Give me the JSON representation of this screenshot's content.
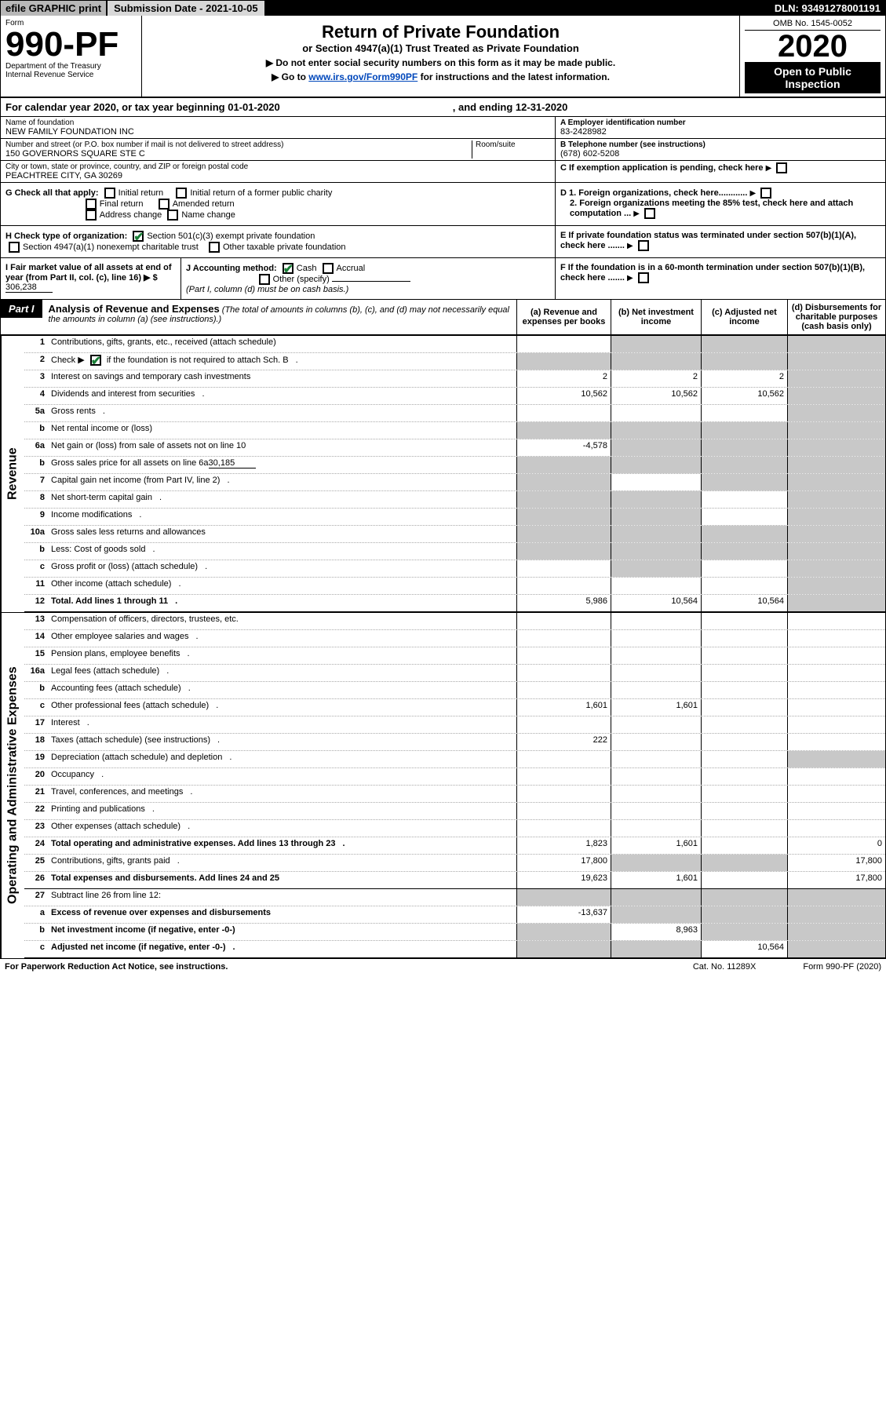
{
  "topbar": {
    "efile": "efile GRAPHIC print",
    "subdate_label": "Submission Date - 2021-10-05",
    "dln": "DLN: 93491278001191"
  },
  "head": {
    "form_label": "Form",
    "form_num": "990-PF",
    "dept": "Department of the Treasury",
    "irs": "Internal Revenue Service",
    "title": "Return of Private Foundation",
    "subtitle": "or Section 4947(a)(1) Trust Treated as Private Foundation",
    "note1": "▶ Do not enter social security numbers on this form as it may be made public.",
    "note2_pre": "▶ Go to ",
    "note2_link": "www.irs.gov/Form990PF",
    "note2_post": " for instructions and the latest information.",
    "omb": "OMB No. 1545-0052",
    "year": "2020",
    "open": "Open to Public Inspection"
  },
  "calrow": {
    "a": "For calendar year 2020, or tax year beginning 01-01-2020",
    "b": ", and ending 12-31-2020"
  },
  "name": {
    "lab": "Name of foundation",
    "val": "NEW FAMILY FOUNDATION INC"
  },
  "ein": {
    "lab": "A Employer identification number",
    "val": "83-2428982"
  },
  "addr": {
    "lab": "Number and street (or P.O. box number if mail is not delivered to street address)",
    "val": "150 GOVERNORS SQUARE STE C",
    "room": "Room/suite"
  },
  "tel": {
    "lab": "B Telephone number (see instructions)",
    "val": "(678) 602-5208"
  },
  "city": {
    "lab": "City or town, state or province, country, and ZIP or foreign postal code",
    "val": "PEACHTREE CITY, GA  30269"
  },
  "C": "C If exemption application is pending, check here",
  "G": {
    "lab": "G Check all that apply:",
    "o1": "Initial return",
    "o2": "Final return",
    "o3": "Address change",
    "o4": "Initial return of a former public charity",
    "o5": "Amended return",
    "o6": "Name change"
  },
  "D": {
    "d1": "D 1. Foreign organizations, check here............",
    "d2": "2. Foreign organizations meeting the 85% test, check here and attach computation ..."
  },
  "E": "E  If private foundation status was terminated under section 507(b)(1)(A), check here .......",
  "H": {
    "lab": "H Check type of organization:",
    "o1": "Section 501(c)(3) exempt private foundation",
    "o2": "Section 4947(a)(1) nonexempt charitable trust",
    "o3": "Other taxable private foundation"
  },
  "I": {
    "lab": "I Fair market value of all assets at end of year (from Part II, col. (c), line 16) ▶ $",
    "val": "306,238"
  },
  "J": {
    "lab": "J Accounting method:",
    "o1": "Cash",
    "o2": "Accrual",
    "o3": "Other (specify)",
    "note": "(Part I, column (d) must be on cash basis.)"
  },
  "F": "F  If the foundation is in a 60-month termination under section 507(b)(1)(B), check here .......",
  "part1": {
    "num": "Part I",
    "title": "Analysis of Revenue and Expenses",
    "note": "(The total of amounts in columns (b), (c), and (d) may not necessarily equal the amounts in column (a) (see instructions).)",
    "ha": "(a)  Revenue and expenses per books",
    "hb": "(b)  Net investment income",
    "hc": "(c)  Adjusted net income",
    "hd": "(d)  Disbursements for charitable purposes (cash basis only)"
  },
  "rotRev": "Revenue",
  "rotOps": "Operating and Administrative Expenses",
  "rows": [
    {
      "n": "1",
      "d": "Contributions, gifts, grants, etc., received (attach schedule)",
      "a": "",
      "b": "grey",
      "c": "grey",
      "dcol": "grey"
    },
    {
      "n": "2",
      "d": "Check ▶ ☑ if the foundation is not required to attach Sch. B",
      "dots": true,
      "a": "grey",
      "b": "grey",
      "c": "grey",
      "dcol": "grey",
      "ck": true
    },
    {
      "n": "3",
      "d": "Interest on savings and temporary cash investments",
      "a": "2",
      "b": "2",
      "c": "2",
      "dcol": "grey"
    },
    {
      "n": "4",
      "d": "Dividends and interest from securities",
      "dots": true,
      "a": "10,562",
      "b": "10,562",
      "c": "10,562",
      "dcol": "grey"
    },
    {
      "n": "5a",
      "d": "Gross rents",
      "dots": true,
      "a": "",
      "b": "",
      "c": "",
      "dcol": "grey"
    },
    {
      "n": "b",
      "d": "Net rental income or (loss)",
      "inline": true,
      "a": "grey",
      "b": "grey",
      "c": "grey",
      "dcol": "grey"
    },
    {
      "n": "6a",
      "d": "Net gain or (loss) from sale of assets not on line 10",
      "a": "-4,578",
      "b": "grey",
      "c": "grey",
      "dcol": "grey"
    },
    {
      "n": "b",
      "d": "Gross sales price for all assets on line 6a",
      "inlineVal": "30,185",
      "a": "grey",
      "b": "grey",
      "c": "grey",
      "dcol": "grey"
    },
    {
      "n": "7",
      "d": "Capital gain net income (from Part IV, line 2)",
      "dots": true,
      "a": "grey",
      "b": "",
      "c": "grey",
      "dcol": "grey"
    },
    {
      "n": "8",
      "d": "Net short-term capital gain",
      "dots": true,
      "a": "grey",
      "b": "grey",
      "c": "",
      "dcol": "grey"
    },
    {
      "n": "9",
      "d": "Income modifications",
      "dots": true,
      "a": "grey",
      "b": "grey",
      "c": "",
      "dcol": "grey"
    },
    {
      "n": "10a",
      "d": "Gross sales less returns and allowances",
      "inline": true,
      "a": "grey",
      "b": "grey",
      "c": "grey",
      "dcol": "grey"
    },
    {
      "n": "b",
      "d": "Less: Cost of goods sold",
      "dots": true,
      "inline": true,
      "a": "grey",
      "b": "grey",
      "c": "grey",
      "dcol": "grey"
    },
    {
      "n": "c",
      "d": "Gross profit or (loss) (attach schedule)",
      "dots": true,
      "a": "",
      "b": "grey",
      "c": "",
      "dcol": "grey"
    },
    {
      "n": "11",
      "d": "Other income (attach schedule)",
      "dots": true,
      "a": "",
      "b": "",
      "c": "",
      "dcol": "grey"
    },
    {
      "n": "12",
      "d": "Total. Add lines 1 through 11",
      "dots": true,
      "bold": true,
      "a": "5,986",
      "b": "10,564",
      "c": "10,564",
      "dcol": "grey",
      "solid": true
    }
  ],
  "rowsOps": [
    {
      "n": "13",
      "d": "Compensation of officers, directors, trustees, etc.",
      "a": "",
      "b": "",
      "c": "",
      "dcol": ""
    },
    {
      "n": "14",
      "d": "Other employee salaries and wages",
      "dots": true,
      "a": "",
      "b": "",
      "c": "",
      "dcol": ""
    },
    {
      "n": "15",
      "d": "Pension plans, employee benefits",
      "dots": true,
      "a": "",
      "b": "",
      "c": "",
      "dcol": ""
    },
    {
      "n": "16a",
      "d": "Legal fees (attach schedule)",
      "dots": true,
      "a": "",
      "b": "",
      "c": "",
      "dcol": ""
    },
    {
      "n": "b",
      "d": "Accounting fees (attach schedule)",
      "dots": true,
      "a": "",
      "b": "",
      "c": "",
      "dcol": ""
    },
    {
      "n": "c",
      "d": "Other professional fees (attach schedule)",
      "dots": true,
      "a": "1,601",
      "b": "1,601",
      "c": "",
      "dcol": ""
    },
    {
      "n": "17",
      "d": "Interest",
      "dots": true,
      "a": "",
      "b": "",
      "c": "",
      "dcol": ""
    },
    {
      "n": "18",
      "d": "Taxes (attach schedule) (see instructions)",
      "dots": true,
      "a": "222",
      "b": "",
      "c": "",
      "dcol": ""
    },
    {
      "n": "19",
      "d": "Depreciation (attach schedule) and depletion",
      "dots": true,
      "a": "",
      "b": "",
      "c": "",
      "dcol": "grey"
    },
    {
      "n": "20",
      "d": "Occupancy",
      "dots": true,
      "a": "",
      "b": "",
      "c": "",
      "dcol": ""
    },
    {
      "n": "21",
      "d": "Travel, conferences, and meetings",
      "dots": true,
      "a": "",
      "b": "",
      "c": "",
      "dcol": ""
    },
    {
      "n": "22",
      "d": "Printing and publications",
      "dots": true,
      "a": "",
      "b": "",
      "c": "",
      "dcol": ""
    },
    {
      "n": "23",
      "d": "Other expenses (attach schedule)",
      "dots": true,
      "a": "",
      "b": "",
      "c": "",
      "dcol": ""
    },
    {
      "n": "24",
      "d": "Total operating and administrative expenses. Add lines 13 through 23",
      "dots": true,
      "bold": true,
      "a": "1,823",
      "b": "1,601",
      "c": "",
      "dcol": "0"
    },
    {
      "n": "25",
      "d": "Contributions, gifts, grants paid",
      "dots": true,
      "a": "17,800",
      "b": "grey",
      "c": "grey",
      "dcol": "17,800"
    },
    {
      "n": "26",
      "d": "Total expenses and disbursements. Add lines 24 and 25",
      "bold": true,
      "a": "19,623",
      "b": "1,601",
      "c": "",
      "dcol": "17,800",
      "solid": true
    },
    {
      "n": "27",
      "d": "Subtract line 26 from line 12:",
      "a": "grey",
      "b": "grey",
      "c": "grey",
      "dcol": "grey"
    },
    {
      "n": "a",
      "d": "Excess of revenue over expenses and disbursements",
      "bold": true,
      "a": "-13,637",
      "b": "grey",
      "c": "grey",
      "dcol": "grey"
    },
    {
      "n": "b",
      "d": "Net investment income (if negative, enter -0-)",
      "bold": true,
      "a": "grey",
      "b": "8,963",
      "c": "grey",
      "dcol": "grey"
    },
    {
      "n": "c",
      "d": "Adjusted net income (if negative, enter -0-)",
      "dots": true,
      "bold": true,
      "a": "grey",
      "b": "grey",
      "c": "10,564",
      "dcol": "grey",
      "solid": true
    }
  ],
  "foot": {
    "a": "For Paperwork Reduction Act Notice, see instructions.",
    "b": "Cat. No. 11289X",
    "c": "Form 990-PF (2020)"
  }
}
